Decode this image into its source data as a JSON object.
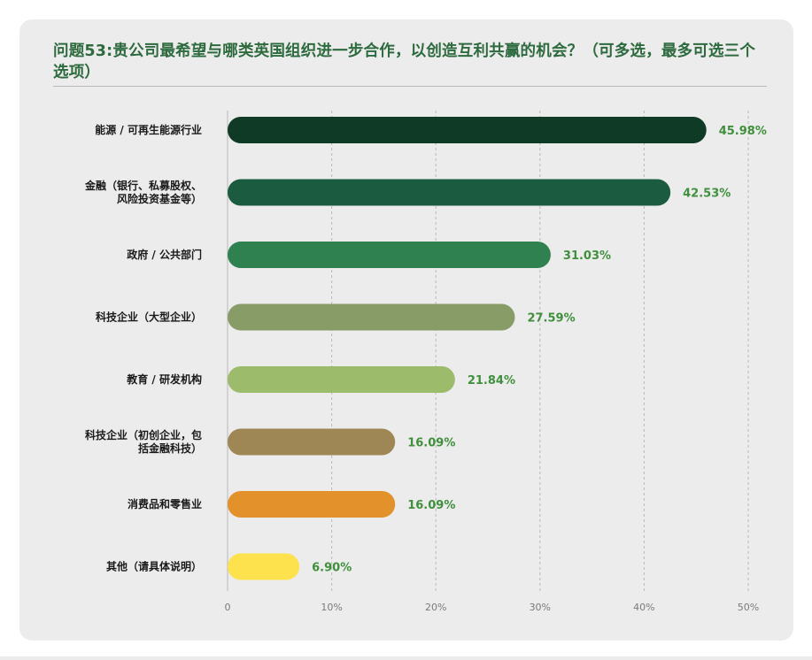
{
  "title": "问题53:贵公司最希望与哪类英国组织进一步合作，以创造互利共赢的机会？（可多选，最多可选三个选项）",
  "chart_data": {
    "type": "bar",
    "orientation": "horizontal",
    "title": "问题53:贵公司最希望与哪类英国组织进一步合作，以创造互利共赢的机会？（可多选，最多可选三个选项）",
    "categories": [
      [
        "能源 / 可再生能源行业"
      ],
      [
        "金融（银行、私募股权、",
        "风险投资基金等）"
      ],
      [
        "政府 / 公共部门"
      ],
      [
        "科技企业（大型企业）"
      ],
      [
        "教育 / 研发机构"
      ],
      [
        "科技企业（初创企业，包",
        "括金融科技）"
      ],
      [
        "消费品和零售业"
      ],
      [
        "其他（请具体说明）"
      ]
    ],
    "values": [
      45.98,
      42.53,
      31.03,
      27.59,
      21.84,
      16.09,
      16.09,
      6.9
    ],
    "value_labels": [
      "45.98%",
      "42.53%",
      "31.03%",
      "27.59%",
      "21.84%",
      "16.09%",
      "16.09%",
      "6.90%"
    ],
    "bar_colors": [
      "#0e3a26",
      "#1b5c40",
      "#2f8150",
      "#889c68",
      "#9cbb6b",
      "#9e8755",
      "#e3912a",
      "#fde24e"
    ],
    "value_label_color": "#3f8f3c",
    "xlim": [
      0,
      50
    ],
    "xticks": [
      0,
      10,
      20,
      30,
      40,
      50
    ],
    "xtick_labels": [
      "0",
      "10%",
      "20%",
      "30%",
      "40%",
      "50%"
    ],
    "grid": "vertical dashed",
    "legend": "none"
  }
}
